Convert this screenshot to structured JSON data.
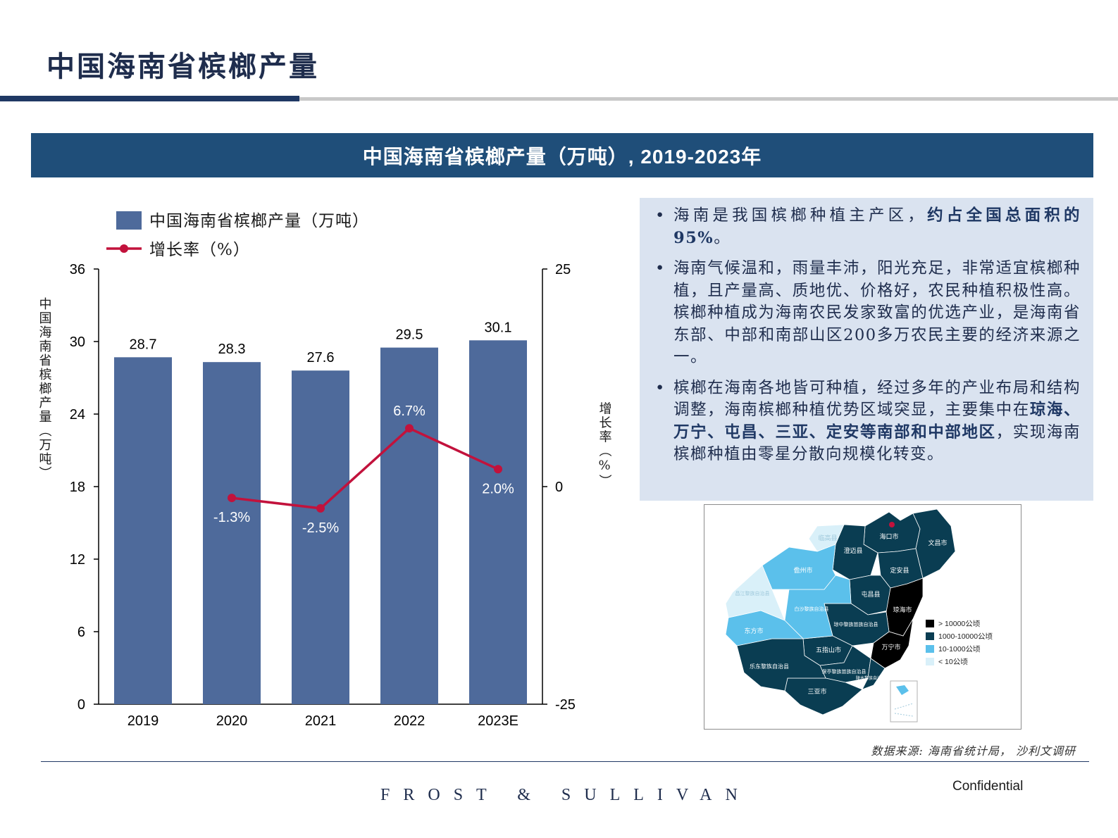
{
  "page": {
    "title": "中国海南省槟榔产量",
    "banner": "中国海南省槟榔产量（万吨）, 2019-2023年",
    "source": "数据来源: 海南省统计局， 沙利文调研",
    "footer_brand": "FROST & SULLIVAN",
    "confidential": "Confidential"
  },
  "colors": {
    "bar": "#4e6a9b",
    "line": "#c2123c",
    "banner": "#1f4e79",
    "title": "#1f2d4d"
  },
  "chart_data": {
    "type": "bar",
    "categories": [
      "2019",
      "2020",
      "2021",
      "2022",
      "2023E"
    ],
    "series": [
      {
        "name": "中国海南省槟榔产量（万吨）",
        "type": "bar",
        "axis": "left",
        "values": [
          28.7,
          28.3,
          27.6,
          29.5,
          30.1
        ],
        "labels": [
          "28.7",
          "28.3",
          "27.6",
          "29.5",
          "30.1"
        ]
      },
      {
        "name": "增长率（%）",
        "type": "line",
        "axis": "right",
        "values": [
          null,
          -1.3,
          -2.5,
          6.7,
          2.0
        ],
        "labels": [
          "",
          "-1.3%",
          "-2.5%",
          "6.7%",
          "2.0%"
        ]
      }
    ],
    "ylabel": "中国海南省槟榔产量（万吨）",
    "y2label": "增长率（%）",
    "ylim": [
      0,
      36
    ],
    "yticks": [
      0,
      6,
      12,
      18,
      24,
      30,
      36
    ],
    "y2lim": [
      -25,
      25
    ],
    "y2ticks": [
      -25,
      0,
      25
    ],
    "grid": false,
    "legend": "top-left"
  },
  "bullets": [
    {
      "parts": [
        {
          "t": "海南是我国槟榔种植主产区，"
        },
        {
          "t": "约占全国总面积的95%",
          "b": true
        },
        {
          "t": "。"
        }
      ]
    },
    {
      "parts": [
        {
          "t": "海南气候温和，雨量丰沛，阳光充足，非常适宜槟榔种植，且产量高、质地优、价格好，农民种植积极性高。槟榔种植成为海南农民发家致富的优选产业，是海南省东部、中部和南部山区200多万农民主要的经济来源之一。"
        }
      ]
    },
    {
      "parts": [
        {
          "t": "槟榔在海南各地皆可种植，经过多年的产业布局和结构调整，海南槟榔种植优势区域突显，主要集中在"
        },
        {
          "t": "琼海、万宁、屯昌、三亚、定安等南部和中部地区",
          "b": true
        },
        {
          "t": "，实现海南槟榔种植由零星分散向规模化转变。"
        }
      ]
    }
  ],
  "map": {
    "legend": [
      {
        "label": "> 10000公顷",
        "color": "#000000"
      },
      {
        "label": "1000-10000公顷",
        "color": "#0a3d52"
      },
      {
        "label": "10-1000公顷",
        "color": "#5bc0eb"
      },
      {
        "label": "< 10公顷",
        "color": "#d9f0f9"
      }
    ],
    "regions": [
      {
        "name": "海口市",
        "color": "#0a3d52"
      },
      {
        "name": "文昌市",
        "color": "#0a3d52"
      },
      {
        "name": "澄迈县",
        "color": "#0a3d52"
      },
      {
        "name": "定安县",
        "color": "#0a3d52"
      },
      {
        "name": "屯昌县",
        "color": "#0a3d52"
      },
      {
        "name": "琼海市",
        "color": "#000000"
      },
      {
        "name": "万宁市",
        "color": "#000000"
      },
      {
        "name": "琼中黎族苗族自治县",
        "color": "#0a3d52"
      },
      {
        "name": "五指山市",
        "color": "#0a3d52"
      },
      {
        "name": "保亭黎族苗族自治县",
        "color": "#0a3d52"
      },
      {
        "name": "陵水黎族自治县",
        "color": "#0a3d52"
      },
      {
        "name": "三亚市",
        "color": "#0a3d52"
      },
      {
        "name": "乐东黎族自治县",
        "color": "#0a3d52"
      },
      {
        "name": "白沙黎族自治县",
        "color": "#5bc0eb"
      },
      {
        "name": "儋州市",
        "color": "#5bc0eb"
      },
      {
        "name": "东方市",
        "color": "#5bc0eb"
      },
      {
        "name": "临高县",
        "color": "#d9f0f9"
      },
      {
        "name": "昌江黎族自治县",
        "color": "#d9f0f9"
      }
    ]
  }
}
